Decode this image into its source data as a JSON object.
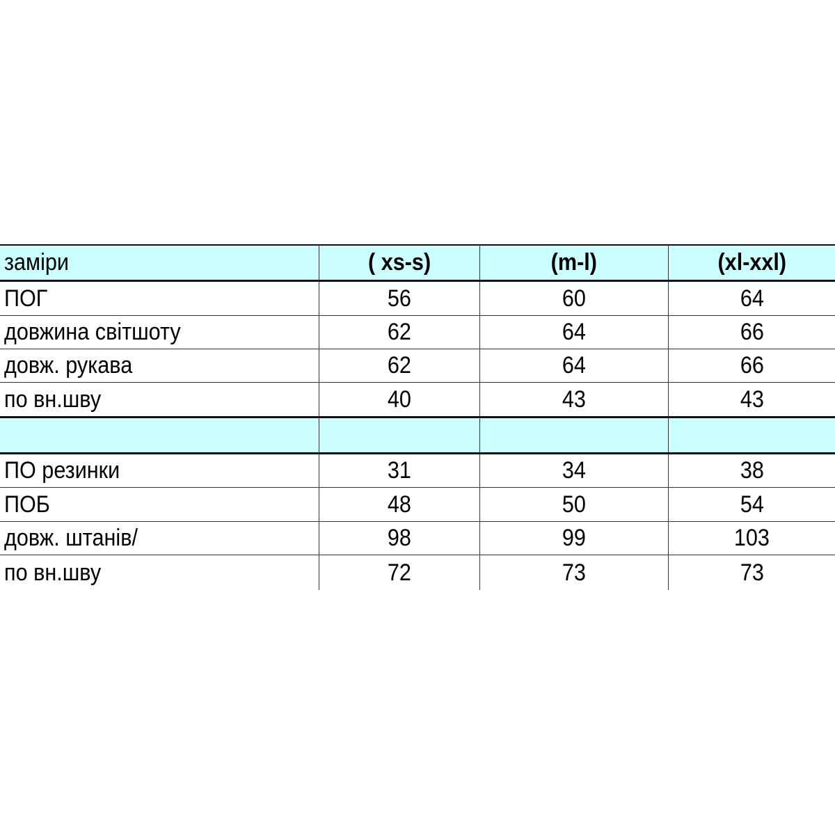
{
  "colors": {
    "header_bg": "#ccffff",
    "border": "#333333"
  },
  "table": {
    "header": [
      "заміри",
      "( xs-s)",
      "(m-l)",
      "(xl-xxl)"
    ],
    "rows": [
      {
        "label": "ПОГ",
        "values": [
          "56",
          "60",
          "64"
        ]
      },
      {
        "label": "довжина світшоту",
        "values": [
          "62",
          "64",
          "66"
        ]
      },
      {
        "label": "довж. рукава",
        "values": [
          "62",
          "64",
          "66"
        ]
      },
      {
        "label": "по вн.шву",
        "values": [
          "40",
          "43",
          "43"
        ]
      },
      {
        "label": "",
        "values": [
          "",
          "",
          ""
        ],
        "separator": true
      },
      {
        "label": "ПО резинки",
        "values": [
          "31",
          "34",
          "38"
        ]
      },
      {
        "label": "ПОБ",
        "values": [
          "48",
          "50",
          "54"
        ]
      },
      {
        "label": "довж. штанів/",
        "values": [
          "98",
          "99",
          "103"
        ]
      },
      {
        "label": "по вн.шву",
        "values": [
          "72",
          "73",
          "73"
        ]
      }
    ]
  }
}
